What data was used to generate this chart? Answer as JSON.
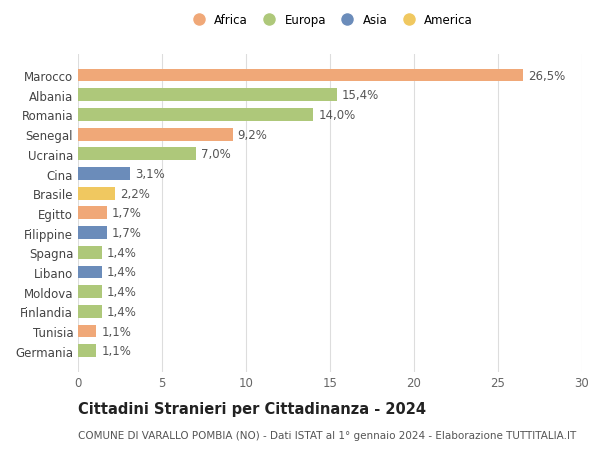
{
  "countries": [
    "Germania",
    "Tunisia",
    "Finlandia",
    "Moldova",
    "Libano",
    "Spagna",
    "Filippine",
    "Egitto",
    "Brasile",
    "Cina",
    "Ucraina",
    "Senegal",
    "Romania",
    "Albania",
    "Marocco"
  ],
  "values": [
    1.1,
    1.1,
    1.4,
    1.4,
    1.4,
    1.4,
    1.7,
    1.7,
    2.2,
    3.1,
    7.0,
    9.2,
    14.0,
    15.4,
    26.5
  ],
  "labels": [
    "1,1%",
    "1,1%",
    "1,4%",
    "1,4%",
    "1,4%",
    "1,4%",
    "1,7%",
    "1,7%",
    "2,2%",
    "3,1%",
    "7,0%",
    "9,2%",
    "14,0%",
    "15,4%",
    "26,5%"
  ],
  "colors": [
    "#aec87a",
    "#f0a878",
    "#aec87a",
    "#aec87a",
    "#6b8cba",
    "#aec87a",
    "#6b8cba",
    "#f0a878",
    "#f0c860",
    "#6b8cba",
    "#aec87a",
    "#f0a878",
    "#aec87a",
    "#aec87a",
    "#f0a878"
  ],
  "legend_labels": [
    "Africa",
    "Europa",
    "Asia",
    "America"
  ],
  "legend_colors": [
    "#f0a878",
    "#aec87a",
    "#6b8cba",
    "#f0c860"
  ],
  "xlim": [
    0,
    30
  ],
  "xticks": [
    0,
    5,
    10,
    15,
    20,
    25,
    30
  ],
  "title": "Cittadini Stranieri per Cittadinanza - 2024",
  "subtitle": "COMUNE DI VARALLO POMBIA (NO) - Dati ISTAT al 1° gennaio 2024 - Elaborazione TUTTITALIA.IT",
  "bg_color": "#ffffff",
  "grid_color": "#dddddd",
  "bar_height": 0.65,
  "label_fontsize": 8.5,
  "tick_fontsize": 8.5,
  "title_fontsize": 10.5,
  "subtitle_fontsize": 7.5
}
